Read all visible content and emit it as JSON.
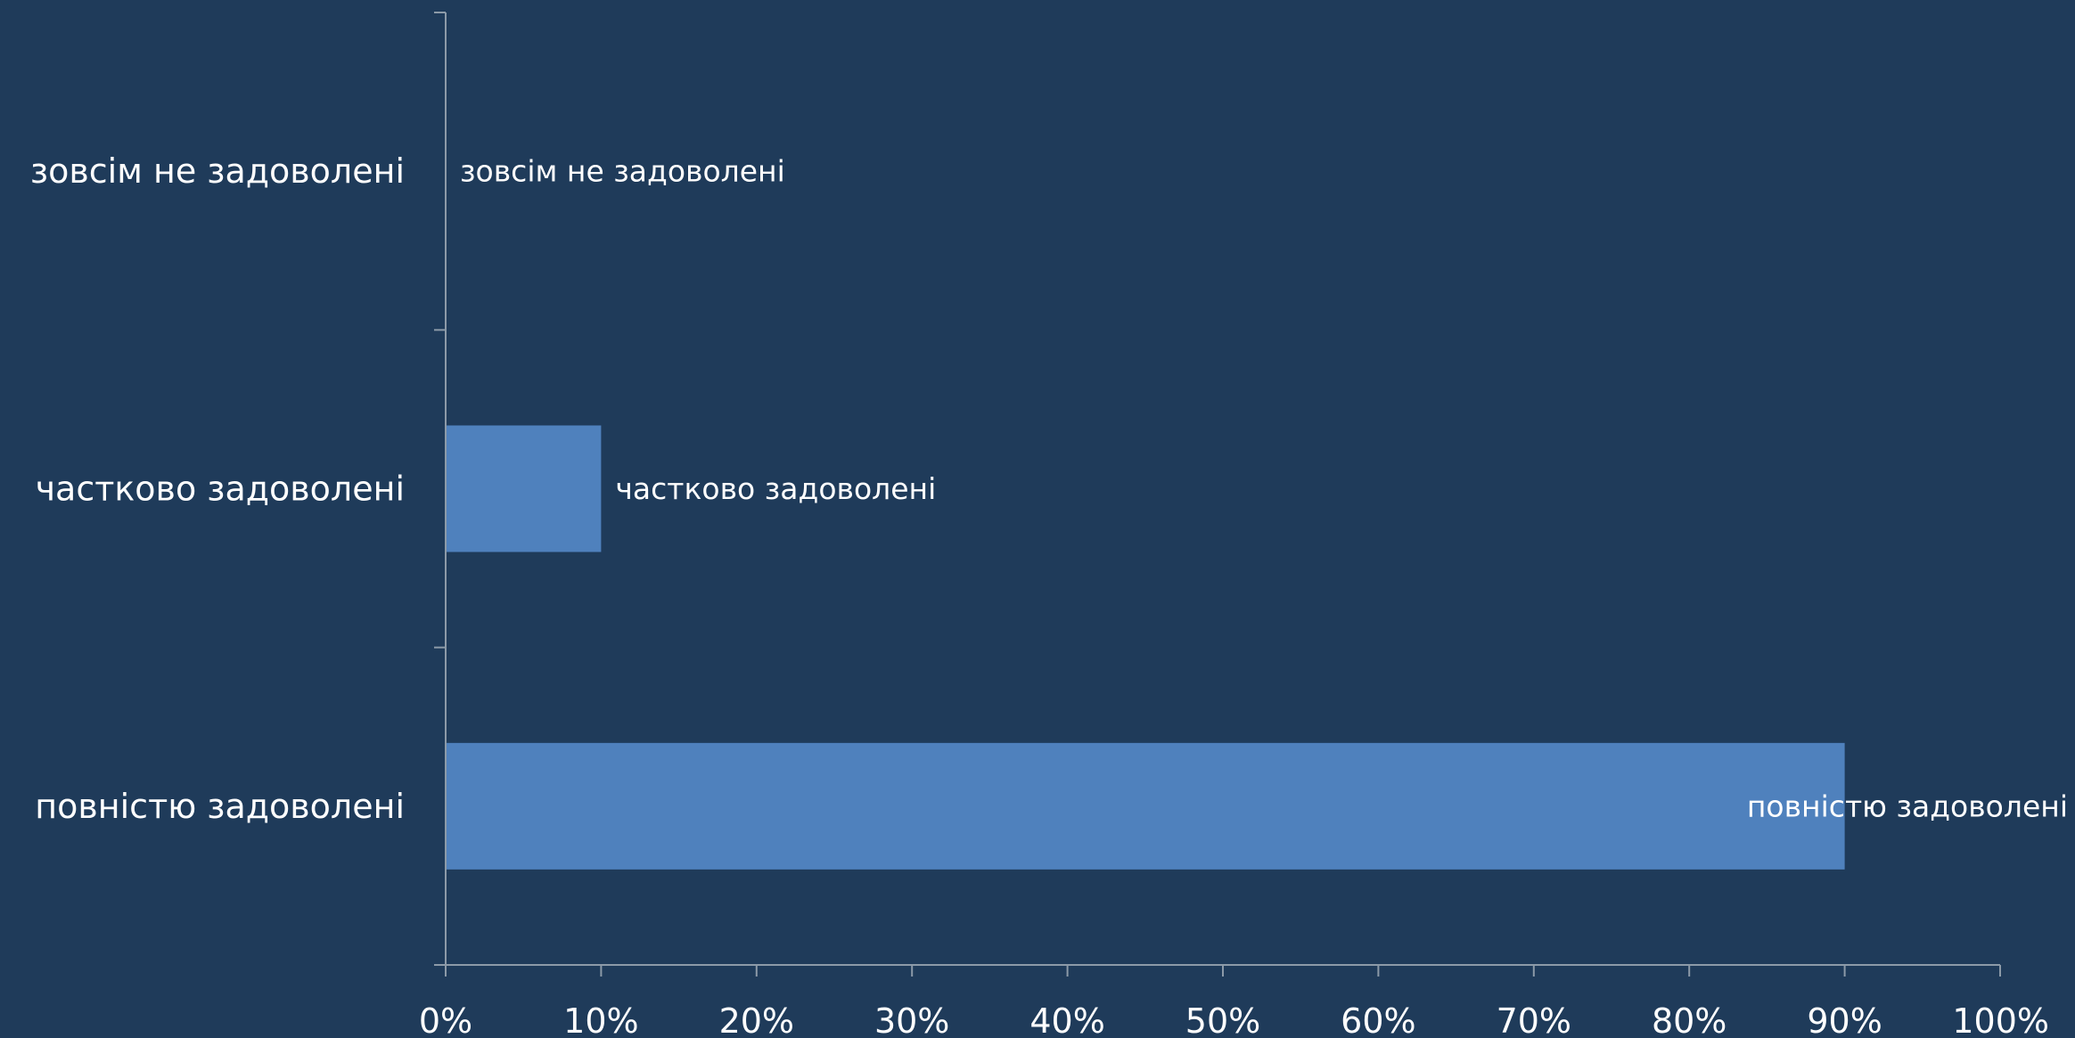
{
  "chart_data": {
    "type": "bar",
    "orientation": "horizontal",
    "categories": [
      "зовсім не задоволені",
      "частково задоволені",
      "повністю задоволені"
    ],
    "values": [
      0,
      10,
      90
    ],
    "data_labels": [
      "зовсім не задоволені",
      "частково задоволені",
      "повністю задоволені"
    ],
    "title": "",
    "xlabel": "",
    "ylabel": "",
    "xlim": [
      0,
      100
    ],
    "x_ticks": [
      "0%",
      "10%",
      "20%",
      "30%",
      "40%",
      "50%",
      "60%",
      "70%",
      "80%",
      "90%",
      "100%"
    ],
    "grid": false,
    "legend": "none",
    "colors": {
      "background": "#1f3b5a",
      "bar": "#4f81bd",
      "axis": "#8c9aa8",
      "text": "#ffffff"
    }
  }
}
